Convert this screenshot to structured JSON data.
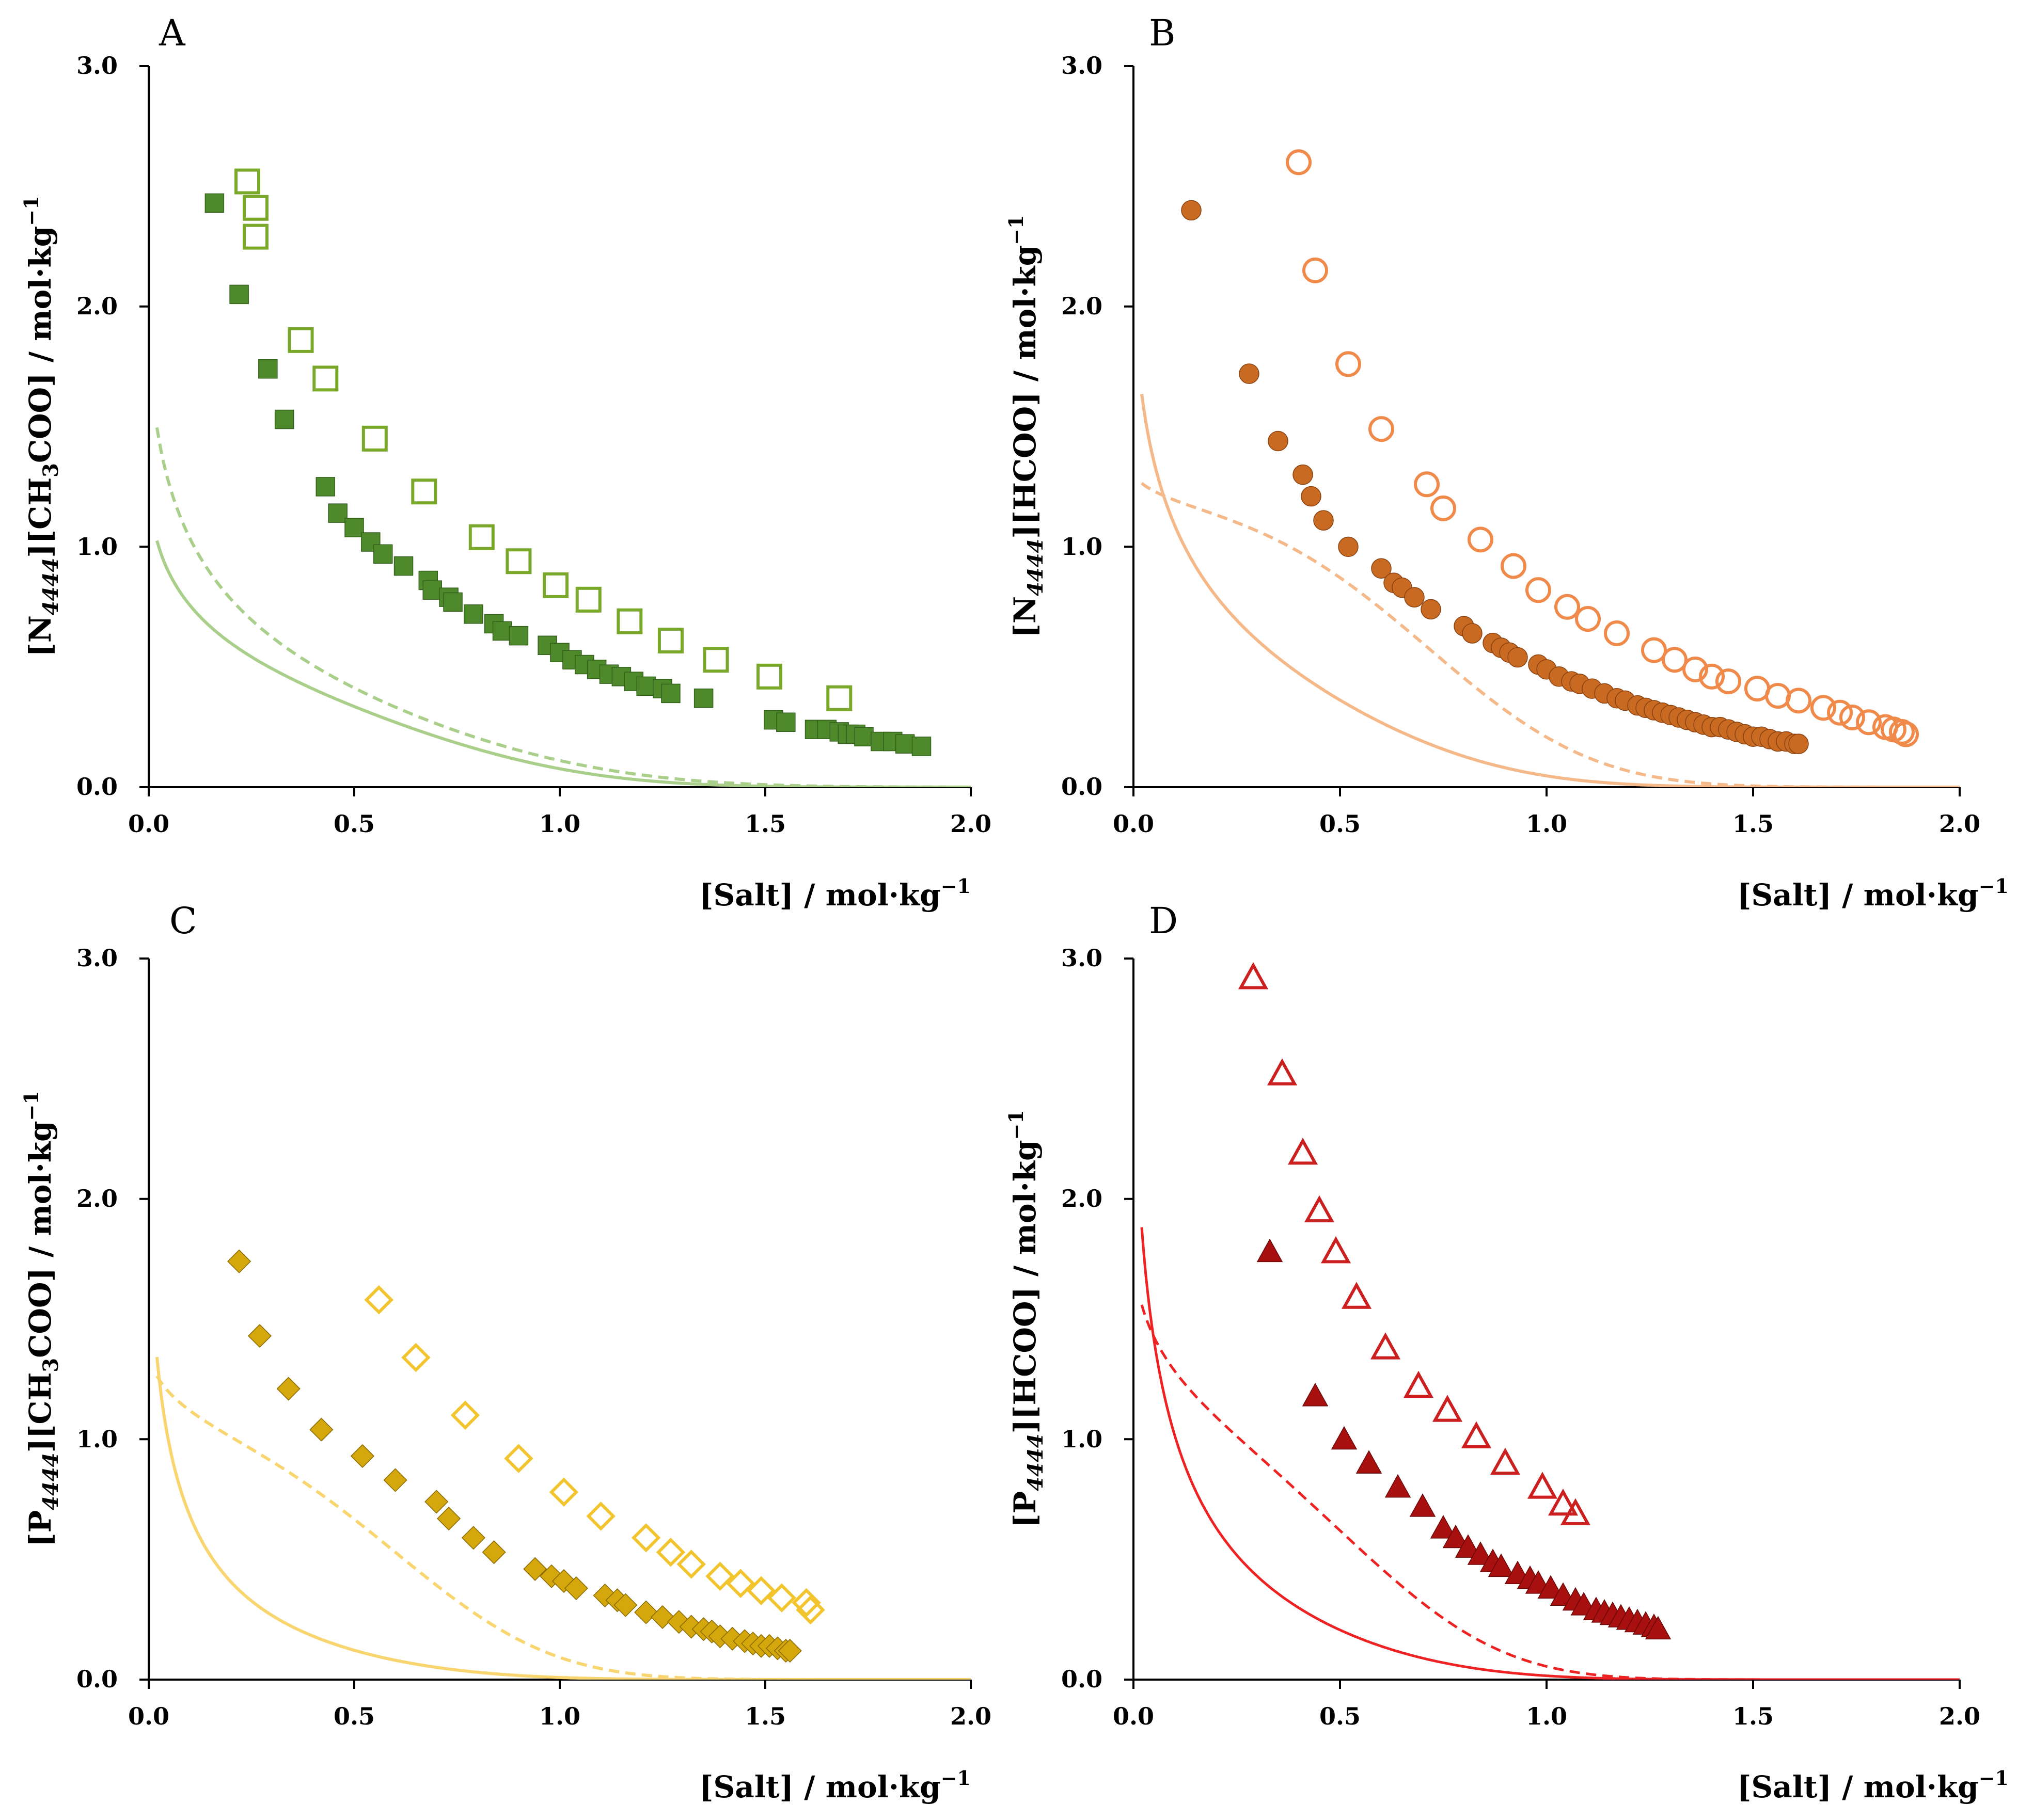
{
  "panels": [
    {
      "label": "A",
      "ylabel": {
        "p1": "[N",
        "sub1": "4444",
        "p2": "][CH",
        "sub2": "3",
        "p3": "COO] / mol·kg",
        "sup": "−1"
      },
      "xlabel": {
        "text": "[Salt] / mol·kg",
        "sup": "−1"
      },
      "xticks": [
        "0.0",
        "0.5",
        "1.0",
        "1.5",
        "2.0"
      ],
      "yticks": [
        "0.0",
        "1.0",
        "2.0",
        "3.0"
      ]
    },
    {
      "label": "B",
      "ylabel": {
        "p1": "[N",
        "sub1": "4444",
        "p2": "][HCOO] / mol·kg",
        "sub2": "",
        "p3": "",
        "sup": "−1"
      },
      "xlabel": {
        "text": "[Salt] / mol·kg",
        "sup": "−1"
      },
      "xticks": [
        "0.0",
        "0.5",
        "1.0",
        "1.5",
        "2.0"
      ],
      "yticks": [
        "0.0",
        "1.0",
        "2.0",
        "3.0"
      ]
    },
    {
      "label": "C",
      "ylabel": {
        "p1": "[P",
        "sub1": "4444",
        "p2": "][CH",
        "sub2": "3",
        "p3": "COO] / mol·kg",
        "sup": "−1"
      },
      "xlabel": {
        "text": "[Salt] / mol·kg",
        "sup": "−1"
      },
      "xticks": [
        "0.0",
        "0.5",
        "1.0",
        "1.5",
        "2.0"
      ],
      "yticks": [
        "0.0",
        "1.0",
        "2.0",
        "3.0"
      ]
    },
    {
      "label": "D",
      "ylabel": {
        "p1": "[P",
        "sub1": "4444",
        "p2": "][HCOO] / mol·kg",
        "sub2": "",
        "p3": "",
        "sup": "−1"
      },
      "xlabel": {
        "text": "[Salt] / mol·kg",
        "sup": "−1"
      },
      "xticks": [
        "0.0",
        "0.5",
        "1.0",
        "1.5",
        "2.0"
      ],
      "yticks": [
        "0.0",
        "1.0",
        "2.0",
        "3.0"
      ]
    }
  ],
  "chart_data": [
    {
      "panel": "A",
      "type": "scatter",
      "xlim": [
        0,
        2
      ],
      "ylim": [
        0,
        3
      ],
      "color": "#7aa82a",
      "fill_color": "#4e8a2c",
      "fit_color": "#a9cf8a",
      "series": [
        {
          "name": "filled",
          "marker": "square",
          "filled": true,
          "x": [
            0.16,
            0.22,
            0.29,
            0.33,
            0.43,
            0.46,
            0.5,
            0.54,
            0.57,
            0.62,
            0.68,
            0.69,
            0.73,
            0.74,
            0.79,
            0.84,
            0.86,
            0.9,
            0.97,
            1.0,
            1.03,
            1.06,
            1.09,
            1.12,
            1.15,
            1.18,
            1.21,
            1.25,
            1.27,
            1.35,
            1.52,
            1.55,
            1.62,
            1.65,
            1.68,
            1.7,
            1.72,
            1.74,
            1.78,
            1.81,
            1.84,
            1.88
          ],
          "y": [
            2.43,
            2.05,
            1.74,
            1.53,
            1.25,
            1.14,
            1.08,
            1.02,
            0.97,
            0.92,
            0.86,
            0.82,
            0.79,
            0.77,
            0.72,
            0.68,
            0.65,
            0.63,
            0.59,
            0.56,
            0.53,
            0.51,
            0.49,
            0.47,
            0.46,
            0.44,
            0.42,
            0.41,
            0.39,
            0.37,
            0.28,
            0.27,
            0.24,
            0.24,
            0.23,
            0.22,
            0.22,
            0.21,
            0.19,
            0.19,
            0.18,
            0.17
          ]
        },
        {
          "name": "open",
          "marker": "square",
          "filled": false,
          "x": [
            0.24,
            0.26,
            0.26,
            0.37,
            0.43,
            0.55,
            0.67,
            0.81,
            0.9,
            0.99,
            1.07,
            1.17,
            1.27,
            1.38,
            1.51,
            1.68
          ],
          "y": [
            2.52,
            2.41,
            2.29,
            1.86,
            1.7,
            1.45,
            1.23,
            1.04,
            0.94,
            0.84,
            0.78,
            0.69,
            0.61,
            0.53,
            0.46,
            0.37
          ]
        }
      ],
      "fits": [
        {
          "name": "solid fit",
          "style": "solid",
          "a": 0.27,
          "b": -1.73,
          "c": 1.11
        },
        {
          "name": "dashed fit",
          "style": "dashed",
          "a": 0.7,
          "b": -2.1,
          "c": 0.8
        }
      ]
    },
    {
      "panel": "B",
      "type": "scatter",
      "xlim": [
        0,
        2
      ],
      "ylim": [
        0,
        3
      ],
      "color": "#ef8a4a",
      "fill_color": "#c96a22",
      "fit_color": "#f5b989",
      "series": [
        {
          "name": "filled",
          "marker": "circle",
          "filled": true,
          "x": [
            0.14,
            0.28,
            0.35,
            0.41,
            0.43,
            0.46,
            0.52,
            0.6,
            0.63,
            0.65,
            0.68,
            0.72,
            0.8,
            0.82,
            0.87,
            0.89,
            0.91,
            0.93,
            0.98,
            1.0,
            1.03,
            1.06,
            1.08,
            1.11,
            1.14,
            1.17,
            1.19,
            1.22,
            1.24,
            1.26,
            1.28,
            1.3,
            1.32,
            1.34,
            1.36,
            1.38,
            1.4,
            1.42,
            1.44,
            1.46,
            1.48,
            1.5,
            1.52,
            1.54,
            1.56,
            1.58,
            1.6,
            1.61
          ],
          "y": [
            2.4,
            1.72,
            1.44,
            1.3,
            1.21,
            1.11,
            1.0,
            0.91,
            0.85,
            0.83,
            0.79,
            0.74,
            0.67,
            0.64,
            0.6,
            0.58,
            0.56,
            0.54,
            0.51,
            0.49,
            0.46,
            0.44,
            0.43,
            0.41,
            0.39,
            0.37,
            0.36,
            0.34,
            0.33,
            0.32,
            0.31,
            0.3,
            0.29,
            0.28,
            0.27,
            0.26,
            0.25,
            0.25,
            0.24,
            0.23,
            0.22,
            0.21,
            0.21,
            0.2,
            0.19,
            0.19,
            0.18,
            0.18
          ]
        },
        {
          "name": "open",
          "marker": "circle",
          "filled": false,
          "x": [
            0.4,
            0.44,
            0.52,
            0.6,
            0.71,
            0.75,
            0.84,
            0.92,
            0.98,
            1.05,
            1.1,
            1.17,
            1.26,
            1.31,
            1.36,
            1.4,
            1.44,
            1.51,
            1.56,
            1.61,
            1.67,
            1.71,
            1.74,
            1.78,
            1.82,
            1.84,
            1.86,
            1.87
          ],
          "y": [
            2.6,
            2.15,
            1.76,
            1.49,
            1.26,
            1.16,
            1.03,
            0.92,
            0.82,
            0.75,
            0.7,
            0.64,
            0.57,
            0.53,
            0.49,
            0.46,
            0.44,
            0.41,
            0.38,
            0.36,
            0.33,
            0.31,
            0.29,
            0.27,
            0.25,
            0.24,
            0.23,
            0.22
          ]
        }
      ],
      "fits": [
        {
          "name": "solid fit",
          "style": "solid",
          "a": 0.82,
          "b": -2.32,
          "c": 1.56
        },
        {
          "name": "dashed fit",
          "style": "dashed",
          "a": 0.28,
          "b": -0.32,
          "c": 1.53
        }
      ]
    },
    {
      "panel": "C",
      "type": "scatter",
      "xlim": [
        0,
        2
      ],
      "ylim": [
        0,
        3
      ],
      "color": "#f2c42e",
      "fill_color": "#d4a80c",
      "fit_color": "#f8d56e",
      "series": [
        {
          "name": "filled",
          "marker": "diamond",
          "filled": true,
          "x": [
            0.22,
            0.27,
            0.34,
            0.42,
            0.52,
            0.6,
            0.7,
            0.73,
            0.79,
            0.84,
            0.94,
            0.98,
            1.01,
            1.04,
            1.11,
            1.14,
            1.16,
            1.21,
            1.25,
            1.29,
            1.32,
            1.35,
            1.37,
            1.39,
            1.42,
            1.45,
            1.47,
            1.49,
            1.51,
            1.53,
            1.55,
            1.56
          ],
          "y": [
            1.74,
            1.43,
            1.21,
            1.04,
            0.93,
            0.83,
            0.74,
            0.67,
            0.59,
            0.53,
            0.46,
            0.43,
            0.41,
            0.38,
            0.35,
            0.33,
            0.31,
            0.28,
            0.26,
            0.24,
            0.22,
            0.21,
            0.2,
            0.18,
            0.17,
            0.16,
            0.15,
            0.14,
            0.14,
            0.13,
            0.12,
            0.12
          ]
        },
        {
          "name": "open",
          "marker": "diamond",
          "filled": false,
          "x": [
            0.56,
            0.65,
            0.77,
            0.9,
            1.01,
            1.1,
            1.21,
            1.27,
            1.32,
            1.39,
            1.44,
            1.49,
            1.54,
            1.6,
            1.61
          ],
          "y": [
            1.58,
            1.34,
            1.1,
            0.92,
            0.78,
            0.68,
            0.59,
            0.53,
            0.48,
            0.43,
            0.4,
            0.37,
            0.34,
            0.32,
            0.29
          ]
        }
      ],
      "fits": [
        {
          "name": "solid fit",
          "style": "solid",
          "a": 0.84,
          "b": -3.86,
          "c": 1.71
        },
        {
          "name": "dashed fit",
          "style": "dashed",
          "a": 0.33,
          "b": -0.68,
          "c": 2.03
        }
      ]
    },
    {
      "panel": "D",
      "type": "scatter",
      "xlim": [
        0,
        2
      ],
      "ylim": [
        0,
        3
      ],
      "color": "#cc1f1f",
      "fill_color": "#a80f0f",
      "fit_color": "#ee2222",
      "series": [
        {
          "name": "filled",
          "marker": "triangle",
          "filled": true,
          "x": [
            0.33,
            0.44,
            0.51,
            0.57,
            0.64,
            0.7,
            0.75,
            0.78,
            0.81,
            0.84,
            0.87,
            0.89,
            0.93,
            0.96,
            0.98,
            1.01,
            1.04,
            1.07,
            1.09,
            1.12,
            1.14,
            1.16,
            1.18,
            1.2,
            1.22,
            1.24,
            1.26,
            1.27
          ],
          "y": [
            1.78,
            1.18,
            1.0,
            0.9,
            0.8,
            0.72,
            0.63,
            0.59,
            0.55,
            0.52,
            0.49,
            0.47,
            0.44,
            0.42,
            0.4,
            0.38,
            0.35,
            0.33,
            0.31,
            0.29,
            0.28,
            0.27,
            0.26,
            0.25,
            0.24,
            0.23,
            0.22,
            0.21
          ]
        },
        {
          "name": "open",
          "marker": "triangle",
          "filled": false,
          "x": [
            0.29,
            0.36,
            0.41,
            0.45,
            0.49,
            0.54,
            0.61,
            0.69,
            0.76,
            0.83,
            0.9,
            0.99,
            1.04,
            1.07
          ],
          "y": [
            2.92,
            2.52,
            2.19,
            1.95,
            1.78,
            1.59,
            1.38,
            1.22,
            1.12,
            1.01,
            0.9,
            0.8,
            0.73,
            0.69
          ]
        }
      ],
      "fits": [
        {
          "name": "solid fit",
          "style": "solid",
          "a": 1.13,
          "b": -3.52,
          "c": 1.75
        },
        {
          "name": "dashed fit",
          "style": "dashed",
          "a": 0.6,
          "b": -1.1,
          "c": 2.4
        }
      ]
    }
  ]
}
